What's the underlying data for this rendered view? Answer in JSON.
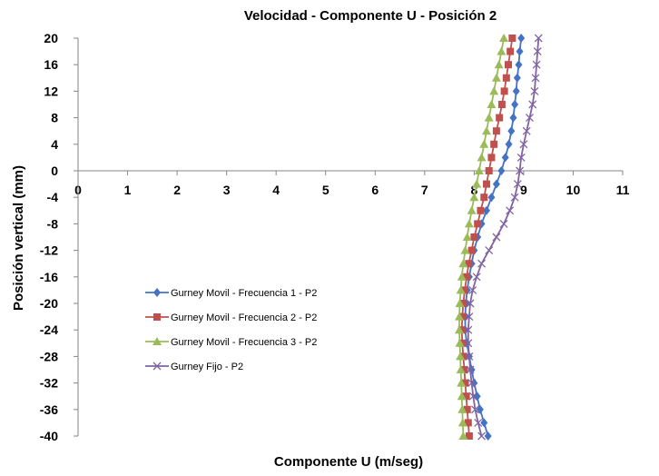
{
  "chart_data": {
    "type": "line",
    "title": "Velocidad - Componente U - Posición 2",
    "xlabel": "Componente U (m/seg)",
    "ylabel": "Posición vertical (mm)",
    "xlim": [
      0,
      11
    ],
    "ylim": [
      -40,
      20
    ],
    "x_ticks": [
      "0",
      "1",
      "2",
      "3",
      "4",
      "5",
      "6",
      "7",
      "8",
      "9",
      "10",
      "11"
    ],
    "y_ticks": [
      "20",
      "16",
      "12",
      "8",
      "4",
      "0",
      "-4",
      "-8",
      "-12",
      "-16",
      "-20",
      "-24",
      "-28",
      "-32",
      "-36",
      "-40"
    ],
    "legend_position": "left-center",
    "y": [
      20,
      18,
      16,
      14,
      12,
      10,
      8,
      6,
      4,
      2,
      0,
      -2,
      -4,
      -6,
      -8,
      -10,
      -12,
      -14,
      -16,
      -18,
      -20,
      -22,
      -24,
      -26,
      -28,
      -30,
      -32,
      -34,
      -36,
      -38,
      -40
    ],
    "series": [
      {
        "name": "Gurney Movil - Frecuencia 1 - P2",
        "color": "#4472C4",
        "marker": "diamond",
        "values": [
          8.95,
          8.92,
          8.9,
          8.87,
          8.85,
          8.82,
          8.79,
          8.75,
          8.7,
          8.63,
          8.55,
          8.45,
          8.35,
          8.25,
          8.15,
          8.07,
          8.0,
          7.95,
          7.9,
          7.86,
          7.83,
          7.82,
          7.82,
          7.85,
          7.9,
          7.95,
          8.0,
          8.06,
          8.12,
          8.2,
          8.28
        ]
      },
      {
        "name": "Gurney Movil - Frecuencia 2 - P2",
        "color": "#C0504D",
        "marker": "square",
        "values": [
          8.77,
          8.73,
          8.69,
          8.65,
          8.61,
          8.56,
          8.51,
          8.45,
          8.4,
          8.35,
          8.3,
          8.25,
          8.2,
          8.13,
          8.07,
          8.0,
          7.95,
          7.89,
          7.85,
          7.81,
          7.78,
          7.76,
          7.75,
          7.76,
          7.78,
          7.8,
          7.82,
          7.84,
          7.86,
          7.88,
          7.9
        ]
      },
      {
        "name": "Gurney Movil - Frecuencia 3 - P2",
        "color": "#9BBB59",
        "marker": "triangle",
        "values": [
          8.6,
          8.55,
          8.5,
          8.45,
          8.4,
          8.35,
          8.3,
          8.25,
          8.2,
          8.15,
          8.1,
          8.05,
          8.0,
          7.95,
          7.9,
          7.86,
          7.82,
          7.78,
          7.75,
          7.73,
          7.71,
          7.7,
          7.7,
          7.71,
          7.72,
          7.73,
          7.74,
          7.75,
          7.76,
          7.77,
          7.78
        ]
      },
      {
        "name": "Gurney Fijo - P2",
        "color": "#8064A2",
        "marker": "x",
        "values": [
          9.3,
          9.28,
          9.26,
          9.24,
          9.22,
          9.18,
          9.12,
          9.06,
          9.0,
          8.95,
          8.92,
          8.88,
          8.82,
          8.72,
          8.6,
          8.45,
          8.3,
          8.15,
          8.05,
          7.97,
          7.92,
          7.9,
          7.88,
          7.88,
          7.9,
          7.92,
          7.95,
          7.98,
          8.02,
          8.08,
          8.15
        ]
      }
    ]
  }
}
